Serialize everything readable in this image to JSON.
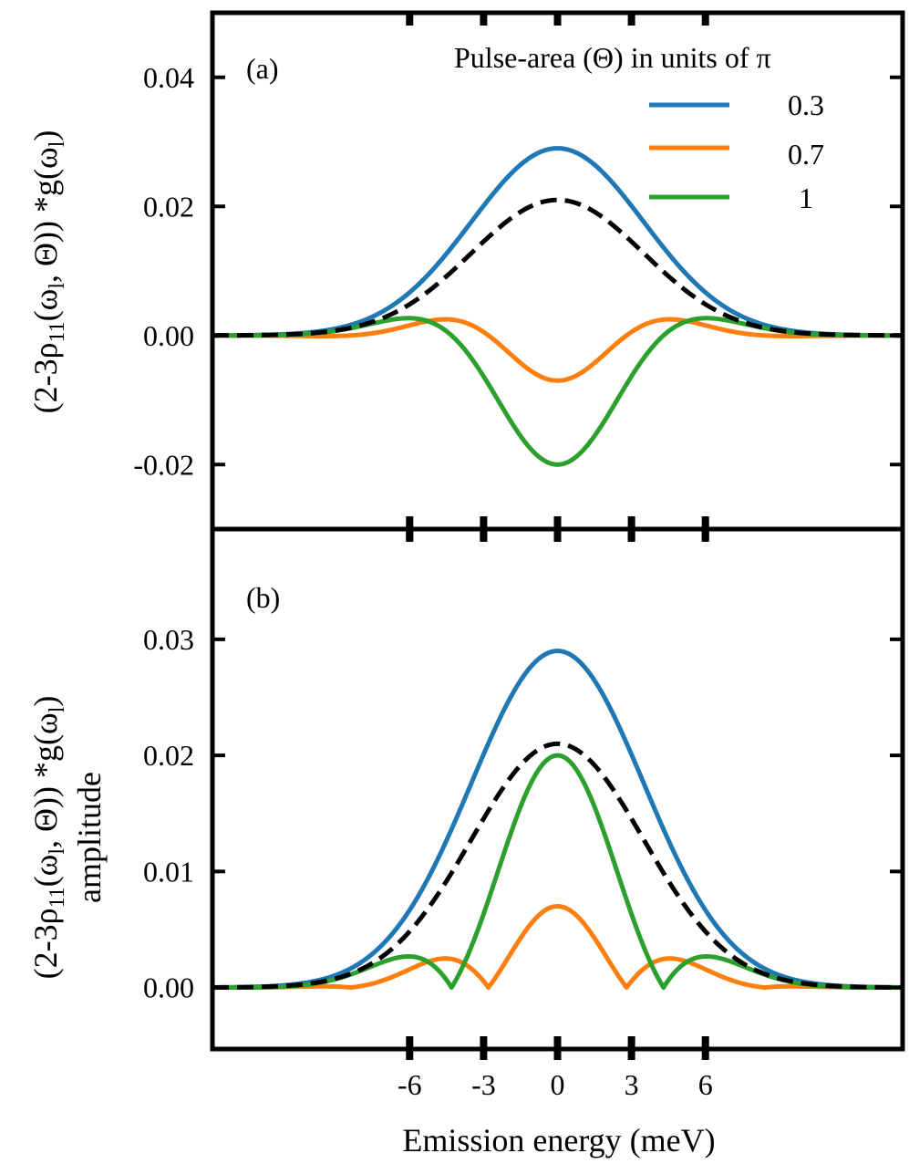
{
  "chart_data": [
    {
      "panel_label": "(a)",
      "type": "line",
      "ylabel_parts": [
        "(2-3ρ",
        "11",
        "(ω",
        "l",
        ", Θ)) *g(ω",
        "l",
        ")"
      ],
      "ylim": [
        -0.03,
        0.05
      ],
      "xlim": [
        -14,
        14
      ],
      "yticks": [
        -0.02,
        0.0,
        0.02,
        0.04
      ],
      "ytick_labels": [
        "-0.02",
        "0.00",
        "0.02",
        "0.04"
      ],
      "xticks": [
        -6,
        -3,
        0,
        3,
        6
      ],
      "legend": {
        "title": "Pulse-area (Θ) in units of π",
        "position": "top-right",
        "entries": [
          {
            "label": "0.3",
            "color": "#1f77b4"
          },
          {
            "label": "0.7",
            "color": "#ff7f0e"
          },
          {
            "label": "1",
            "color": "#2ca02c"
          }
        ]
      },
      "series": [
        {
          "name": "0.3",
          "color": "#1f77b4",
          "peak": 0.029,
          "shape": "gaussian"
        },
        {
          "name": "0.7",
          "color": "#ff7f0e",
          "peak": -0.007,
          "shape": "signed-oscillation",
          "side_max": 0.003
        },
        {
          "name": "1",
          "color": "#2ca02c",
          "peak": -0.02,
          "shape": "signed-oscillation",
          "side_max": 0.0015
        },
        {
          "color": "#000000",
          "dashed": true,
          "peak": 0.021,
          "shape": "gaussian"
        }
      ]
    },
    {
      "panel_label": "(b)",
      "type": "line",
      "ylabel_parts": [
        "(2-3ρ",
        "11",
        "(ω",
        "l",
        ", Θ)) *g(ω",
        "l",
        ")"
      ],
      "ylabel_line2": "amplitude",
      "ylim": [
        -0.0053,
        0.0395
      ],
      "xlim": [
        -14,
        14
      ],
      "yticks": [
        0.0,
        0.01,
        0.02,
        0.03
      ],
      "ytick_labels": [
        "0.00",
        "0.01",
        "0.02",
        "0.03"
      ],
      "xticks": [
        -6,
        -3,
        0,
        3,
        6
      ],
      "xtick_labels": [
        "-6",
        "-3",
        "0",
        "3",
        "6"
      ],
      "xlabel": "Emission energy (meV)",
      "series": [
        {
          "name": "0.3",
          "color": "#1f77b4",
          "peak": 0.029,
          "shape": "gaussian"
        },
        {
          "name": "0.7",
          "color": "#ff7f0e",
          "peak": 0.007,
          "shape": "absolute-oscillation",
          "side_max": 0.003,
          "zeros": [
            -2.8,
            2.8
          ]
        },
        {
          "name": "1",
          "color": "#2ca02c",
          "peak": 0.02,
          "shape": "absolute-oscillation",
          "side_max": 0.0015,
          "zeros": [
            -4.3,
            4.3
          ]
        },
        {
          "color": "#000000",
          "dashed": true,
          "peak": 0.021,
          "shape": "gaussian"
        }
      ]
    }
  ]
}
